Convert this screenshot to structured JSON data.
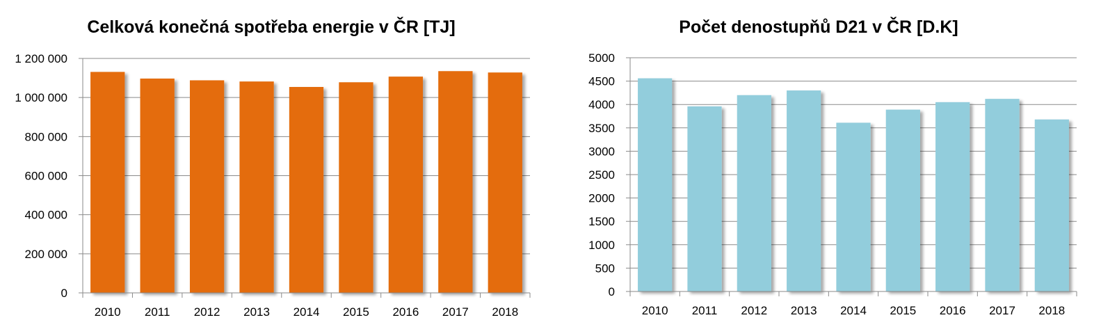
{
  "chart_data": [
    {
      "type": "bar",
      "title": "Celková konečná spotřeba energie v ČR [TJ]",
      "xlabel": "",
      "ylabel": "",
      "categories": [
        "2010",
        "2011",
        "2012",
        "2013",
        "2014",
        "2015",
        "2016",
        "2017",
        "2018"
      ],
      "values": [
        1131000,
        1097000,
        1088000,
        1082000,
        1054000,
        1078000,
        1107000,
        1135000,
        1128000
      ],
      "ylim": [
        0,
        1200000
      ],
      "yticks": [
        0,
        200000,
        400000,
        600000,
        800000,
        1000000,
        1200000
      ],
      "ytick_labels": [
        "0",
        "200 000",
        "400 000",
        "600 000",
        "800 000",
        "1 000 000",
        "1 200 000"
      ],
      "grid": true,
      "bar_color": "#E46C0A"
    },
    {
      "type": "bar",
      "title": "Počet denostupňů D21 v ČR [D.K]",
      "xlabel": "",
      "ylabel": "",
      "categories": [
        "2010",
        "2011",
        "2012",
        "2013",
        "2014",
        "2015",
        "2016",
        "2017",
        "2018"
      ],
      "values": [
        4560,
        3960,
        4200,
        4300,
        3610,
        3890,
        4050,
        4120,
        3680
      ],
      "ylim": [
        0,
        5000
      ],
      "yticks": [
        0,
        500,
        1000,
        1500,
        2000,
        2500,
        3000,
        3500,
        4000,
        4500,
        5000
      ],
      "ytick_labels": [
        "0",
        "500",
        "1000",
        "1500",
        "2000",
        "2500",
        "3000",
        "3500",
        "4000",
        "4500",
        "5000"
      ],
      "grid": true,
      "bar_color": "#92CDDC"
    }
  ]
}
